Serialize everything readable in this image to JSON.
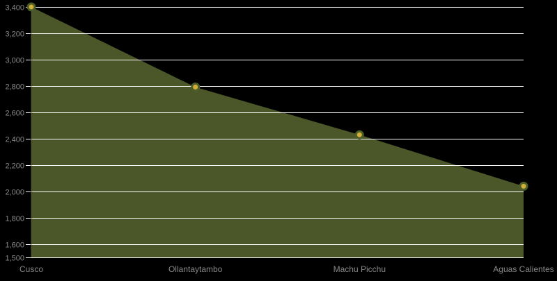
{
  "chart_data": {
    "type": "area",
    "title": "",
    "xlabel": "",
    "ylabel": "",
    "categories": [
      "Cusco",
      "Ollantaytambo",
      "Machu Picchu",
      "Aguas Calientes"
    ],
    "series": [
      {
        "name": "Elevation",
        "values": [
          3400,
          2792,
          2430,
          2040
        ]
      }
    ],
    "ylim": [
      1500,
      3400
    ],
    "yticks": [
      "1,500",
      "1,600",
      "1,800",
      "2,000",
      "2,200",
      "2,400",
      "2,600",
      "2,800",
      "3,000",
      "3,200",
      "3,400"
    ],
    "ytick_values": [
      1500,
      1600,
      1800,
      2000,
      2200,
      2400,
      2600,
      2800,
      3000,
      3200,
      3400
    ],
    "grid": true,
    "legend": "none"
  },
  "colors": {
    "background": "#000000",
    "area_fill": "#4b5629",
    "marker_fill": "#d4af37",
    "marker_stroke": "#4b5e2a",
    "grid": "#ffffff",
    "tick_label": "#888888"
  }
}
